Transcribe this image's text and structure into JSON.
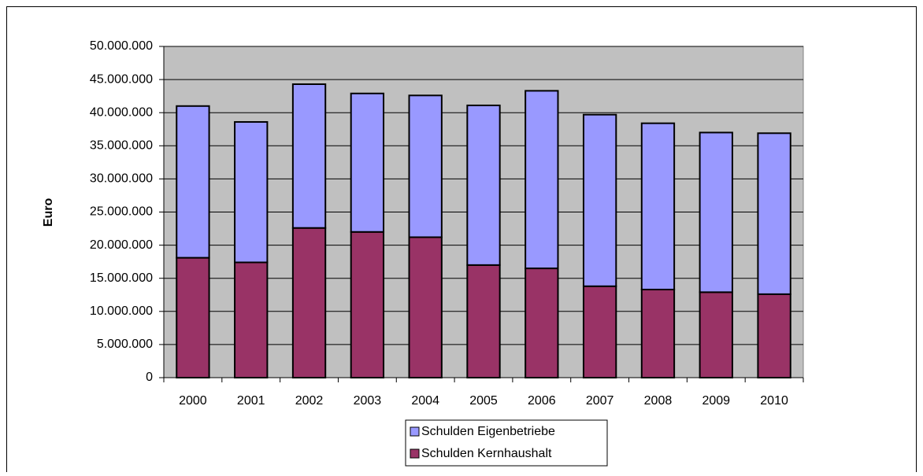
{
  "chart_data": {
    "type": "bar",
    "stacked": true,
    "y_label": "Euro",
    "categories": [
      "2000",
      "2001",
      "2002",
      "2003",
      "2004",
      "2005",
      "2006",
      "2007",
      "2008",
      "2009",
      "2010"
    ],
    "series": [
      {
        "name": "Schulden Kernhaushalt",
        "color": "#993366",
        "values": [
          18100000,
          17400000,
          22600000,
          22000000,
          21200000,
          17000000,
          16500000,
          13800000,
          13300000,
          12900000,
          12600000
        ]
      },
      {
        "name": "Schulden Eigenbetriebe",
        "color": "#9999ff",
        "values": [
          22900000,
          21200000,
          21700000,
          20900000,
          21400000,
          24100000,
          26800000,
          25900000,
          25100000,
          24100000,
          24300000
        ]
      }
    ],
    "ylim": [
      0,
      50000000
    ],
    "yticks": [
      0,
      {
        "value": 5000000,
        "label": "5.000.000"
      },
      {
        "value": 10000000,
        "label": "10.000.000"
      },
      {
        "value": 15000000,
        "label": "15.000.000"
      },
      {
        "value": 20000000,
        "label": "20.000.000"
      },
      {
        "value": 25000000,
        "label": "25.000.000"
      },
      {
        "value": 30000000,
        "label": "30.000.000"
      },
      {
        "value": 35000000,
        "label": "35.000.000"
      },
      {
        "value": 40000000,
        "label": "40.000.000"
      },
      {
        "value": 45000000,
        "label": "45.000.000"
      },
      {
        "value": 50000000,
        "label": "50.000.000"
      }
    ],
    "grid": true,
    "plot_background": "#c0c0c0",
    "legend": "bottom"
  }
}
